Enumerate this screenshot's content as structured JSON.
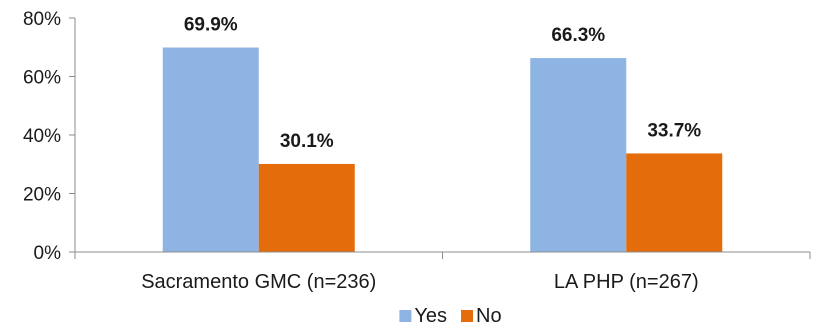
{
  "chart_data": {
    "type": "bar",
    "categories": [
      "Sacramento GMC (n=236)",
      "LA PHP (n=267)"
    ],
    "series": [
      {
        "name": "Yes",
        "values": [
          69.9,
          66.3
        ],
        "labels": [
          "69.9%",
          "66.3%"
        ],
        "color": "#8eb4e3"
      },
      {
        "name": "No",
        "values": [
          30.1,
          33.7
        ],
        "labels": [
          "30.1%",
          "33.7%"
        ],
        "color": "#e46c0a"
      }
    ],
    "y_ticks": [
      "0%",
      "20%",
      "40%",
      "60%",
      "80%"
    ],
    "ylim": [
      0,
      80
    ],
    "y_tick_values": [
      0,
      20,
      40,
      60,
      80
    ],
    "grid": false,
    "legend_position": "bottom",
    "title": "",
    "xlabel": "",
    "ylabel": ""
  }
}
